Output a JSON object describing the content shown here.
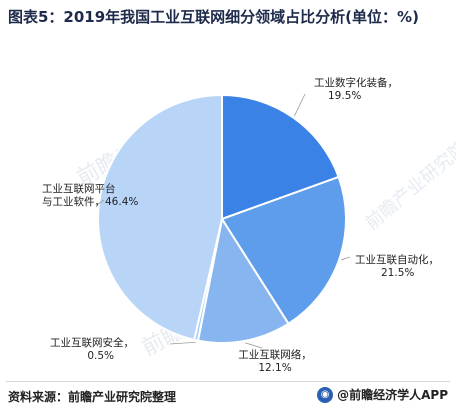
{
  "title": "图表5：2019年我国工业互联网细分领域占比分析(单位：%)",
  "source": "资料来源：前瞻产业研究院整理",
  "brand": {
    "logo_icon": "qianzhan-logo-icon",
    "text": "@前瞻经济学人APP",
    "color": "#2b5fb3"
  },
  "watermark": "前瞻产业研究院",
  "chart_data": {
    "type": "pie",
    "unit": "%",
    "slices": [
      {
        "name": "工业数字化装备",
        "value": 19.5,
        "label": "19.5%",
        "color": "#3a82e6"
      },
      {
        "name": "工业互联自动化",
        "value": 21.5,
        "label": "21.5%",
        "color": "#5e9cec"
      },
      {
        "name": "工业互联网络",
        "value": 12.1,
        "label": "12.1%",
        "color": "#86b5f0"
      },
      {
        "name": "工业互联网安全",
        "value": 0.5,
        "label": "0.5%",
        "color": "#a9ccf6"
      },
      {
        "name": "工业互联网平台与工业软件",
        "value": 46.4,
        "label": "46.4%",
        "color": "#b8d5f8"
      }
    ]
  }
}
